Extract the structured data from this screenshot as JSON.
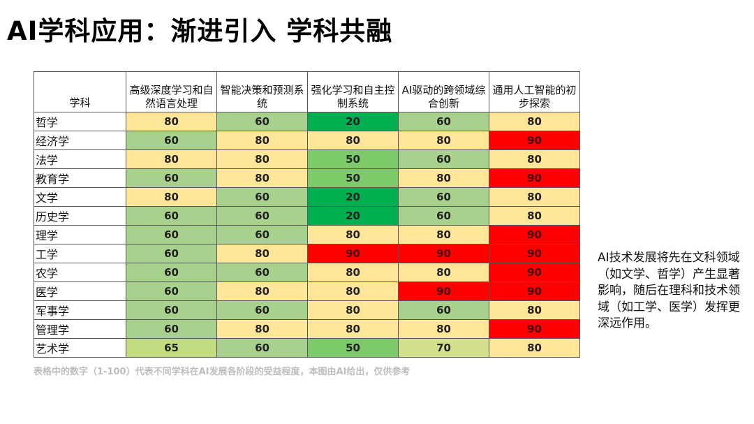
{
  "title": "AI学科应用：渐进引入 学科共融",
  "chart_data": {
    "type": "heatmap",
    "row_header": "学科",
    "columns": [
      "高级深度学习和自然语言处理",
      "智能决策和预测系统",
      "强化学习和自主控制系统",
      "AI驱动的跨领域综合创新",
      "通用人工智能的初步探索"
    ],
    "rows": [
      "哲学",
      "经济学",
      "法学",
      "教育学",
      "文学",
      "历史学",
      "理学",
      "工学",
      "农学",
      "医学",
      "军事学",
      "管理学",
      "艺术学"
    ],
    "values": [
      [
        80,
        60,
        20,
        60,
        80
      ],
      [
        60,
        80,
        80,
        80,
        90
      ],
      [
        80,
        80,
        50,
        60,
        80
      ],
      [
        60,
        80,
        50,
        80,
        90
      ],
      [
        80,
        60,
        20,
        60,
        80
      ],
      [
        60,
        60,
        20,
        60,
        80
      ],
      [
        60,
        60,
        80,
        80,
        90
      ],
      [
        60,
        80,
        90,
        90,
        90
      ],
      [
        60,
        60,
        80,
        80,
        90
      ],
      [
        60,
        80,
        80,
        90,
        90
      ],
      [
        60,
        60,
        80,
        60,
        80
      ],
      [
        60,
        80,
        80,
        80,
        90
      ],
      [
        65,
        60,
        50,
        70,
        80
      ]
    ],
    "value_range": [
      1,
      100
    ],
    "color_scale": {
      "20": "#00b050",
      "50": "#7dca6a",
      "60": "#a9d18e",
      "65": "#c3dc80",
      "70": "#d3e08c",
      "80": "#ffe699",
      "90": "#ff0000"
    }
  },
  "footnote": "表格中的数字（1-100）代表不同学科在AI发展各阶段的受益程度，本图由AI给出，仅供参考",
  "side_text": "AI技术发展将先在文科领域（如文学、哲学）产生显著影响，随后在理科和技术领域（如工学、医学）发挥更深远作用。"
}
